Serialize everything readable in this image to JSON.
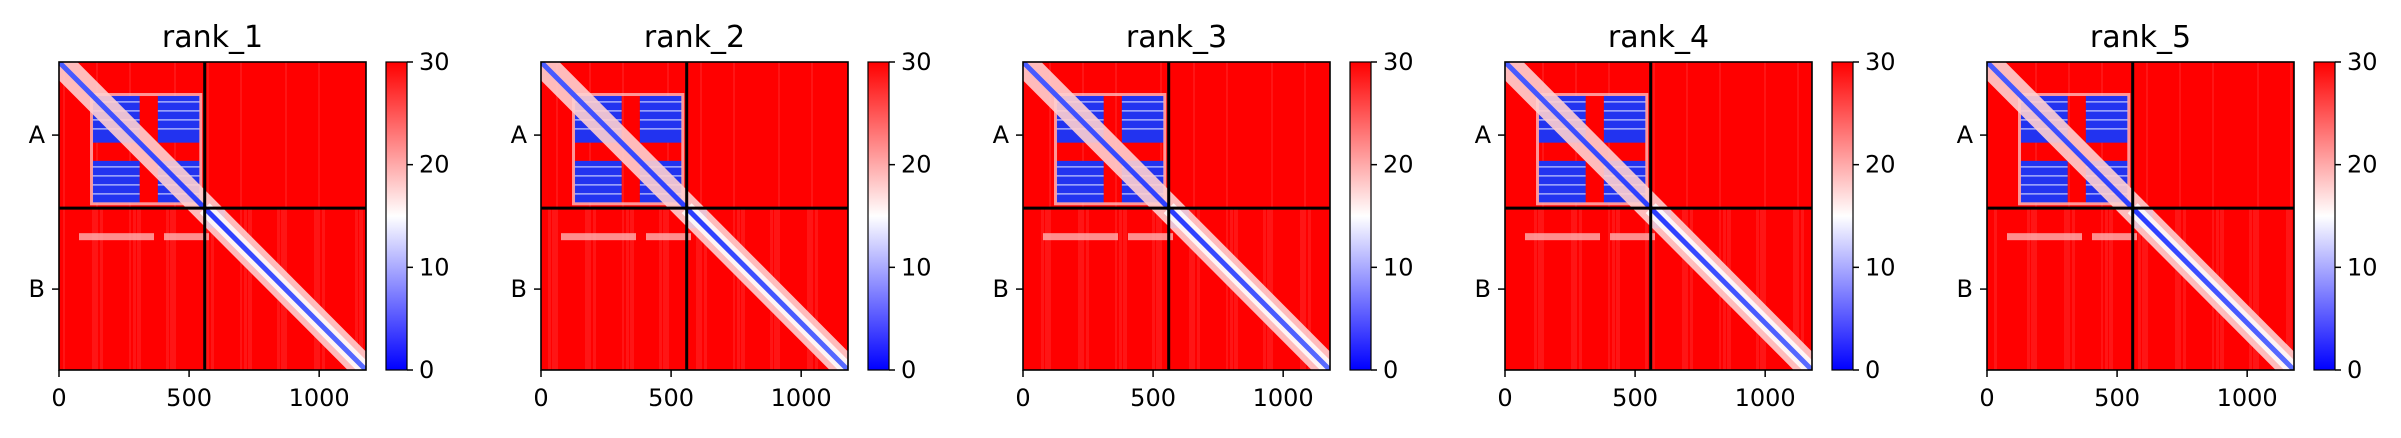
{
  "chart_data": [
    {
      "type": "heatmap",
      "title": "rank_1",
      "xticks": [
        "0",
        "500",
        "1000"
      ],
      "yticks": [
        "A",
        "B"
      ],
      "xlim": [
        0,
        1180
      ],
      "chain_boundary": 560,
      "colorbar": {
        "ticks": [
          "0",
          "10",
          "20",
          "30"
        ],
        "range": [
          0,
          30
        ],
        "colors": [
          "#0000ff",
          "#ffffff",
          "#ff0000"
        ]
      }
    },
    {
      "type": "heatmap",
      "title": "rank_2",
      "xticks": [
        "0",
        "500",
        "1000"
      ],
      "yticks": [
        "A",
        "B"
      ],
      "xlim": [
        0,
        1180
      ],
      "chain_boundary": 560,
      "colorbar": {
        "ticks": [
          "0",
          "10",
          "20",
          "30"
        ],
        "range": [
          0,
          30
        ],
        "colors": [
          "#0000ff",
          "#ffffff",
          "#ff0000"
        ]
      }
    },
    {
      "type": "heatmap",
      "title": "rank_3",
      "xticks": [
        "0",
        "500",
        "1000"
      ],
      "yticks": [
        "A",
        "B"
      ],
      "xlim": [
        0,
        1180
      ],
      "chain_boundary": 560,
      "colorbar": {
        "ticks": [
          "0",
          "10",
          "20",
          "30"
        ],
        "range": [
          0,
          30
        ],
        "colors": [
          "#0000ff",
          "#ffffff",
          "#ff0000"
        ]
      }
    },
    {
      "type": "heatmap",
      "title": "rank_4",
      "xticks": [
        "0",
        "500",
        "1000"
      ],
      "yticks": [
        "A",
        "B"
      ],
      "xlim": [
        0,
        1180
      ],
      "chain_boundary": 560,
      "colorbar": {
        "ticks": [
          "0",
          "10",
          "20",
          "30"
        ],
        "range": [
          0,
          30
        ],
        "colors": [
          "#0000ff",
          "#ffffff",
          "#ff0000"
        ]
      }
    },
    {
      "type": "heatmap",
      "title": "rank_5",
      "xticks": [
        "0",
        "500",
        "1000"
      ],
      "yticks": [
        "A",
        "B"
      ],
      "xlim": [
        0,
        1180
      ],
      "chain_boundary": 560,
      "colorbar": {
        "ticks": [
          "0",
          "10",
          "20",
          "30"
        ],
        "range": [
          0,
          30
        ],
        "colors": [
          "#0000ff",
          "#ffffff",
          "#ff0000"
        ]
      }
    }
  ]
}
